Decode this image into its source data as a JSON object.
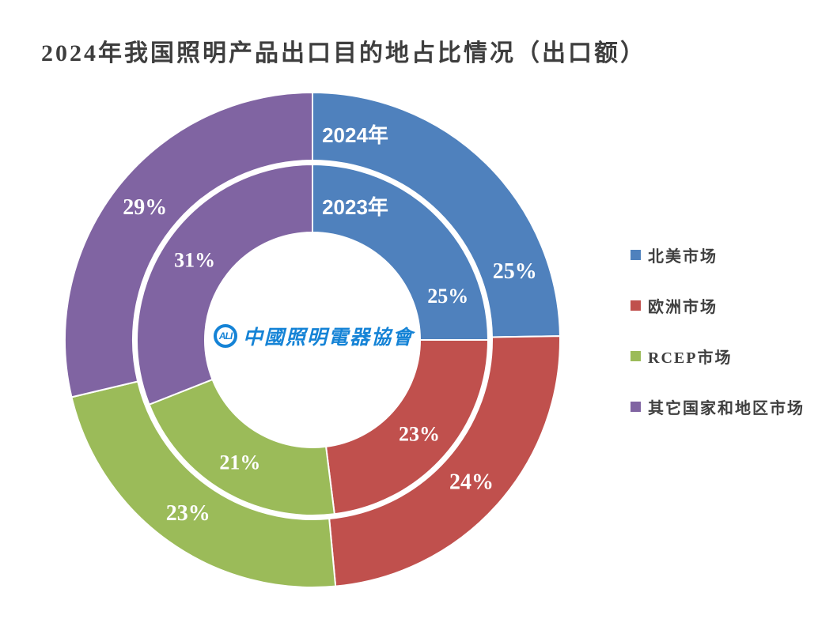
{
  "title": {
    "text": "2024年我国照明产品出口目的地占比情况（出口额）",
    "color": "#3E3E3E"
  },
  "legend": {
    "items": [
      {
        "label": "北美市场",
        "color": "#4F81BD"
      },
      {
        "label": "欧洲市场",
        "color": "#C0504D"
      },
      {
        "label": "RCEP市场",
        "color": "#9BBB59"
      },
      {
        "label": "其它国家和地区市场",
        "color": "#8064A2"
      }
    ]
  },
  "center_logo": {
    "abbr": "ALI",
    "text": "中國照明電器協會",
    "color": "#1583D6"
  },
  "chart_data": {
    "type": "pie",
    "subtype": "nested-donut",
    "title": "2024年我国照明产品出口目的地占比情况（出口额）",
    "categories": [
      "北美市场",
      "欧洲市场",
      "RCEP市场",
      "其它国家和地区市场"
    ],
    "colors": [
      "#4F81BD",
      "#C0504D",
      "#9BBB59",
      "#8064A2"
    ],
    "rings": [
      {
        "name": "2024年",
        "position": "outer",
        "values": [
          25,
          24,
          23,
          29
        ],
        "labels": [
          "25%",
          "24%",
          "23%",
          "29%"
        ]
      },
      {
        "name": "2023年",
        "position": "inner",
        "values": [
          25,
          23,
          21,
          31
        ],
        "labels": [
          "25%",
          "23%",
          "21%",
          "31%"
        ]
      }
    ],
    "start_angle_deg": 0,
    "direction": "clockwise",
    "slice_label_color": "#FFFFFF",
    "legend_position": "right",
    "grid": false
  }
}
